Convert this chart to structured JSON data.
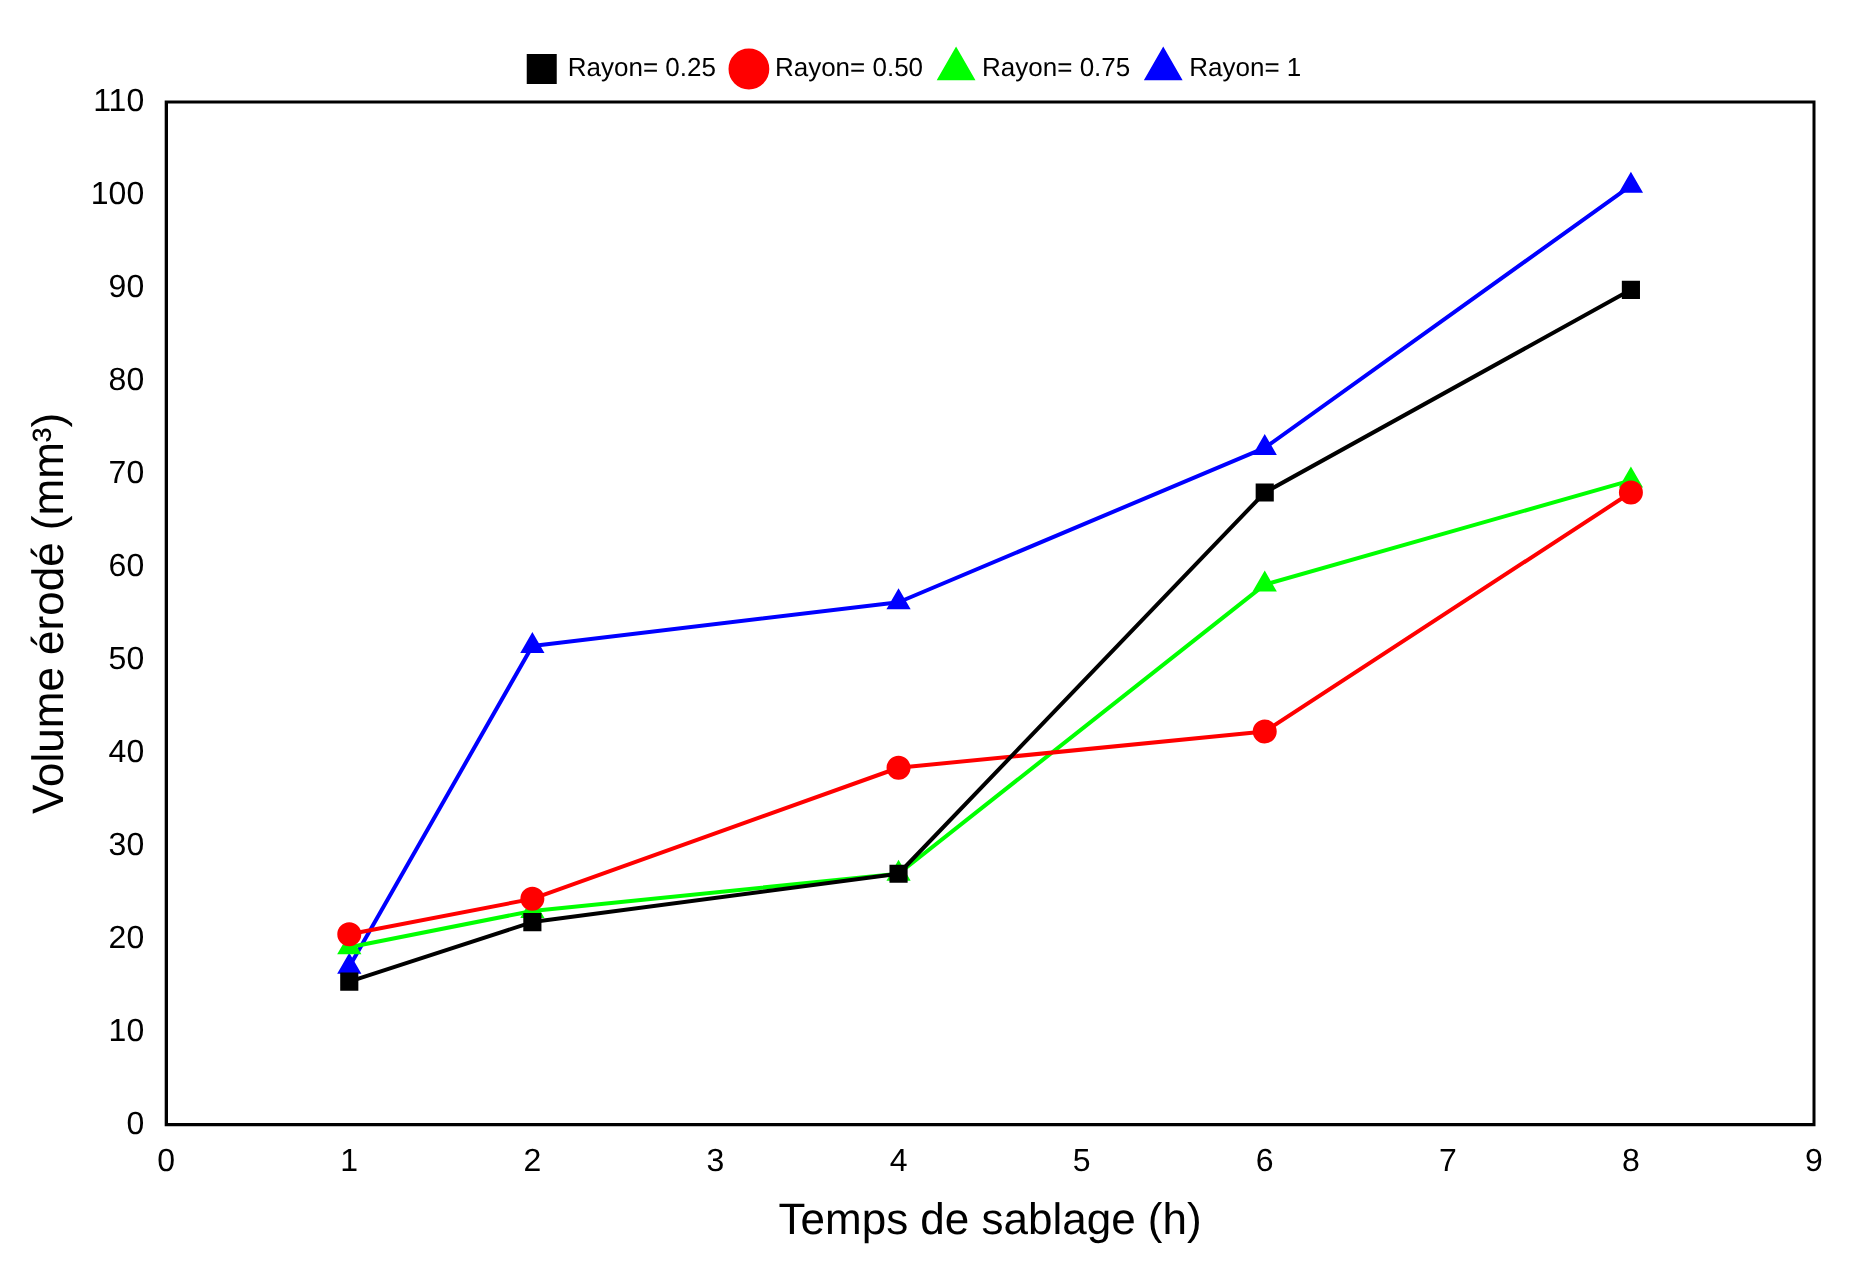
{
  "chart_data": {
    "type": "line",
    "xlabel": "Temps de sablage (h)",
    "ylabel": "Volume érodé (mm³)",
    "x": [
      1,
      2,
      4,
      6,
      8
    ],
    "xlim": [
      0,
      9
    ],
    "xticks": [
      0,
      1,
      2,
      3,
      4,
      5,
      6,
      7,
      8,
      9
    ],
    "ylim": [
      0,
      110
    ],
    "yticks": [
      0,
      10,
      20,
      30,
      40,
      50,
      60,
      70,
      80,
      90,
      100,
      110
    ],
    "grid": false,
    "legend": "top",
    "line_style": "solid",
    "series": [
      {
        "name": "Rayon= 0.25",
        "color": "#000000",
        "marker": "square",
        "values": [
          15.4,
          21.8,
          27,
          68,
          89.8
        ]
      },
      {
        "name": "Rayon= 0.50",
        "color": "#ff0000",
        "marker": "circle",
        "values": [
          20.5,
          24.3,
          38.4,
          42.3,
          68
        ]
      },
      {
        "name": "Rayon= 0.75",
        "color": "#00ff00",
        "marker": "triangle",
        "values": [
          19.1,
          23,
          27,
          58.1,
          69.3
        ]
      },
      {
        "name": "Rayon= 1",
        "color": "#0000ff",
        "marker": "triangle",
        "values": [
          17,
          51.5,
          56.2,
          72.8,
          101
        ]
      }
    ]
  }
}
